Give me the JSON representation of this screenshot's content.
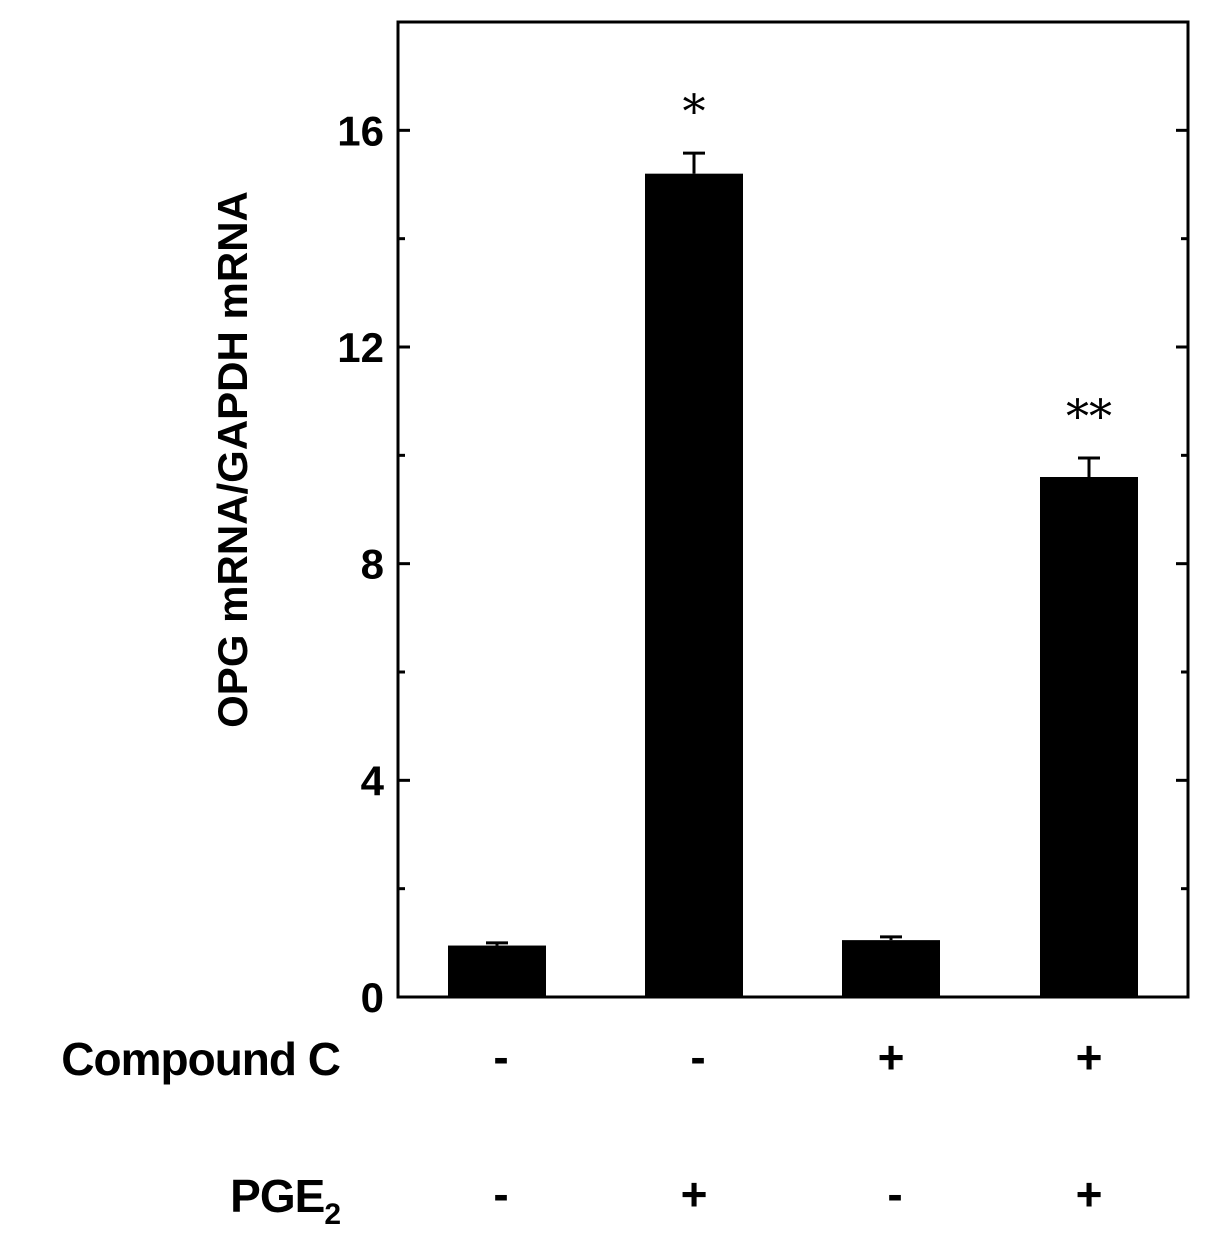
{
  "chart_data": {
    "type": "bar",
    "title": "",
    "xlabel": "",
    "ylabel": "OPG mRNA/GAPDH mRNA",
    "ylim": [
      0,
      18
    ],
    "yticks": [
      0,
      4,
      8,
      12,
      16
    ],
    "yticks_minor": [
      2,
      6,
      10,
      14
    ],
    "grid": false,
    "legend": "none",
    "bar_color": "#000000",
    "categories": [
      "1",
      "2",
      "3",
      "4"
    ],
    "values": [
      0.95,
      15.2,
      1.05,
      9.6
    ],
    "errors": [
      0.05,
      0.38,
      0.06,
      0.35
    ],
    "annotations": [
      "",
      "*",
      "",
      "**"
    ],
    "conditions": [
      {
        "label": "Compound C",
        "label_sub": "",
        "signs": [
          "-",
          "-",
          "+",
          "+"
        ]
      },
      {
        "label": "PGE",
        "label_sub": "2",
        "signs": [
          "-",
          "+",
          "-",
          "+"
        ]
      }
    ]
  }
}
